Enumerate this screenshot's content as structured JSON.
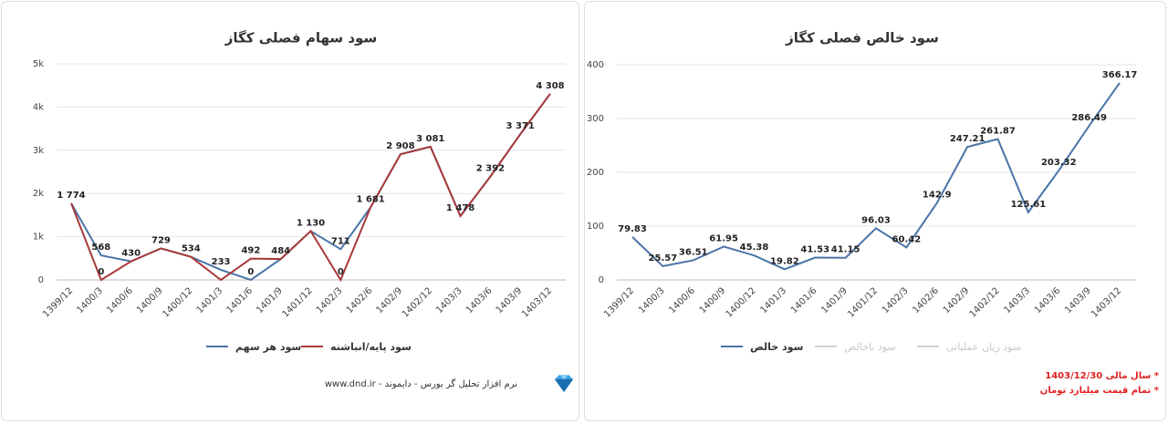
{
  "chart_data": [
    {
      "type": "line",
      "title": "سود سهام فصلی کگاز",
      "categories": [
        "1399/12",
        "1400/3",
        "1400/6",
        "1400/9",
        "1400/12",
        "1401/3",
        "1401/6",
        "1401/9",
        "1401/12",
        "1402/3",
        "1402/6",
        "1402/9",
        "1402/12",
        "1403/3",
        "1403/6",
        "1403/9",
        "1403/12"
      ],
      "series": [
        {
          "name": "سود هر سهم",
          "color": "#4a74a8",
          "values": [
            1774,
            568,
            430,
            729,
            534,
            233,
            0,
            484,
            1130,
            711,
            1681,
            2908,
            3081,
            1478,
            2392,
            3371,
            4308
          ],
          "value_labels": [
            "1 774",
            "568",
            "430",
            "729",
            "534",
            "233",
            "0",
            "484",
            "1 130",
            "711",
            "1 681",
            "2 908",
            "3 081",
            "1 478",
            "2 392",
            "3 371",
            "4 308"
          ]
        },
        {
          "name": "سود پایه/انباشته",
          "color": "#a83a3a",
          "values": [
            1774,
            0,
            430,
            729,
            534,
            0,
            492,
            484,
            1130,
            0,
            1681,
            2908,
            3081,
            1478,
            2392,
            3371,
            4308
          ],
          "value_labels": [
            null,
            "0",
            null,
            null,
            null,
            null,
            "492",
            null,
            null,
            "0",
            null,
            null,
            null,
            null,
            null,
            null,
            null
          ]
        }
      ],
      "ylim": [
        0,
        5000
      ],
      "yticks": [
        0,
        {
          "value": 1000,
          "label": "1k"
        },
        {
          "value": 2000,
          "label": "2k"
        },
        {
          "value": 3000,
          "label": "3k"
        },
        {
          "value": 4000,
          "label": "4k"
        },
        {
          "value": 5000,
          "label": "5k"
        }
      ],
      "grid": true
    },
    {
      "type": "line",
      "title": "سود خالص فصلی کگاز",
      "categories": [
        "1399/12",
        "1400/3",
        "1400/6",
        "1400/9",
        "1400/12",
        "1401/3",
        "1401/6",
        "1401/9",
        "1401/12",
        "1402/3",
        "1402/6",
        "1402/9",
        "1402/12",
        "1403/3",
        "1403/6",
        "1403/9",
        "1403/12"
      ],
      "series": [
        {
          "name": "سود خالص",
          "color": "#4a74a8",
          "values": [
            79.83,
            25.57,
            36.51,
            61.95,
            45.38,
            19.82,
            41.53,
            41.15,
            96.03,
            60.42,
            142.9,
            247.21,
            261.87,
            125.61,
            203.32,
            286.49,
            366.17
          ]
        }
      ],
      "legend_inactive": [
        {
          "name": "سود ناخالص",
          "color": "#d0d0d0"
        },
        {
          "name": "سود زیان عملیاتی",
          "color": "#d0d0d0"
        }
      ],
      "ylim": [
        0,
        400
      ],
      "yticks": [
        0,
        100,
        200,
        300,
        400
      ],
      "grid": true
    }
  ],
  "footer": "نرم افزار تحلیل گر بورس - دایموند - www.dnd.ir",
  "notes": [
    "* سال مالی 1403/12/30",
    "* تمام قیمت میلیارد تومان"
  ]
}
